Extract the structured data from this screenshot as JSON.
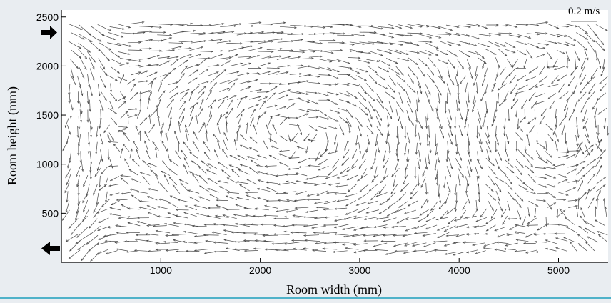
{
  "chart_data": {
    "type": "quiver",
    "title": "",
    "xlabel": "Room width (mm)",
    "ylabel": "Room height (mm)",
    "xlim": [
      0,
      5500
    ],
    "ylim": [
      0,
      2600
    ],
    "x_ticks": [
      1000,
      2000,
      3000,
      4000,
      5000
    ],
    "y_ticks": [
      500,
      1000,
      1500,
      2000,
      2500
    ],
    "x_tick_labels": [
      "1000",
      "2000",
      "3000",
      "4000",
      "5000"
    ],
    "y_tick_labels": [
      "500",
      "1000",
      "1500",
      "2000",
      "2500"
    ],
    "reference_vector": {
      "label": "0.2 m/s",
      "speed": 0.2
    },
    "inlet_marker": {
      "y": 2350,
      "direction": "in"
    },
    "outlet_marker": {
      "y": 150,
      "direction": "out"
    },
    "vector_field": {
      "x_range": [
        80,
        5500
      ],
      "y_range": [
        120,
        2470
      ],
      "dx": 100,
      "dy": 85,
      "vortices": [
        {
          "x": 2800,
          "y": 1320,
          "strength": 1.0,
          "sense": "clockwise"
        },
        {
          "x": 4560,
          "y": 1380,
          "strength": 0.8,
          "sense": "counter-clockwise"
        }
      ],
      "upper_jet": {
        "y": 2350,
        "speed": 0.2,
        "direction": "+x"
      },
      "lower_return": {
        "y": 250,
        "speed": 0.15,
        "direction": "-x"
      }
    },
    "grid": false,
    "legend": "none"
  },
  "colors": {
    "background": "#e9edf1",
    "plot_area": "#ffffff",
    "vectors": "#4a4a4a",
    "axes": "#000000",
    "bottom_rule": "#4fb2c9"
  }
}
